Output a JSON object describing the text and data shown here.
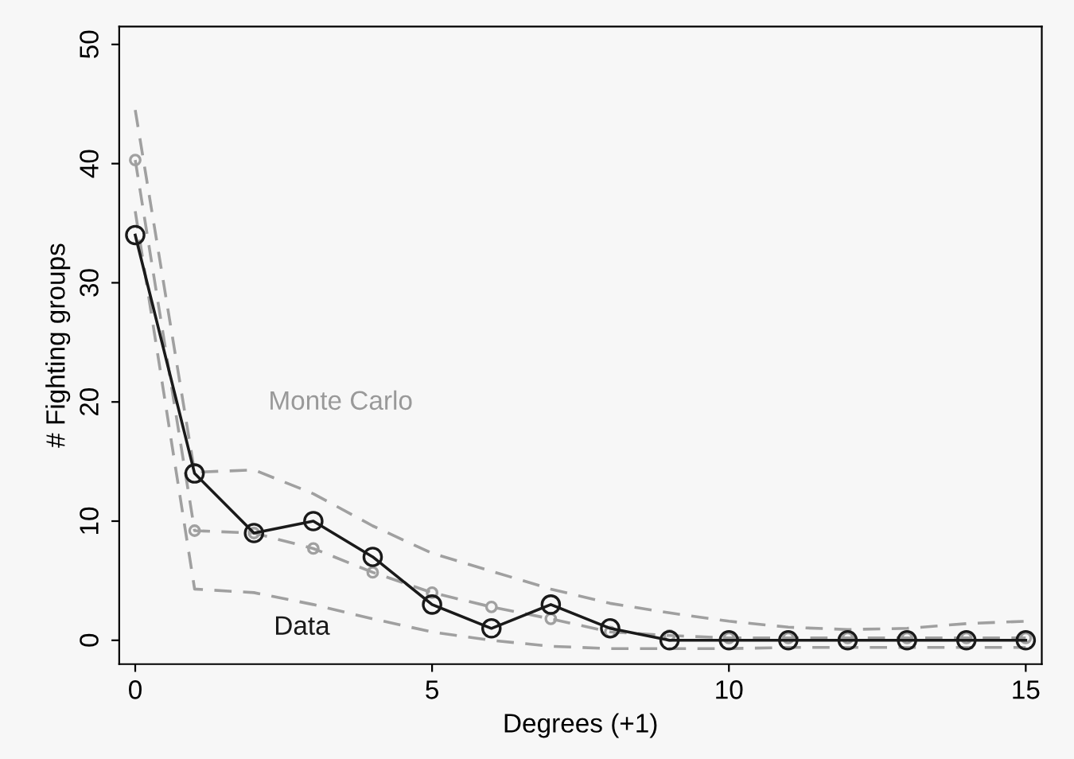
{
  "chart_data": {
    "type": "line",
    "xlabel": "Degrees (+1)",
    "ylabel": "# Fighting groups",
    "x": [
      0,
      1,
      2,
      3,
      4,
      5,
      6,
      7,
      8,
      9,
      10,
      11,
      12,
      13,
      14,
      15
    ],
    "series": [
      {
        "color": "#a0a0a0",
        "line_style": "dashed",
        "marker": "none",
        "values": [
          44.5,
          14.1,
          14.3,
          12.3,
          9.6,
          7.3,
          5.8,
          4.3,
          3.1,
          2.3,
          1.6,
          1.1,
          0.9,
          1.0,
          1.4,
          1.6
        ]
      },
      {
        "color": "#a0a0a0",
        "line_style": "dashed",
        "marker": "none",
        "values": [
          36,
          4.3,
          4.0,
          3.0,
          1.8,
          0.7,
          0.0,
          -0.5,
          -0.7,
          -0.7,
          -0.7,
          -0.6,
          -0.6,
          -0.6,
          -0.6,
          -0.6
        ]
      },
      {
        "color": "#a0a0a0",
        "line_style": "dashed",
        "marker": "circle",
        "values": [
          40.3,
          9.2,
          9.0,
          7.7,
          5.7,
          4.0,
          2.8,
          1.8,
          0.7,
          0.4,
          0.2,
          0.2,
          0.2,
          0.2,
          0.2,
          0.2
        ]
      },
      {
        "color": "#1a1a1a",
        "line_style": "solid",
        "marker": "circle",
        "values": [
          34,
          14,
          9,
          10,
          7,
          3,
          1,
          3,
          1,
          0,
          0,
          0,
          0,
          0,
          0,
          0
        ]
      }
    ],
    "annotations": [
      "Monte Carlo",
      "Data"
    ],
    "xlim": [
      -0.27,
      15.27
    ],
    "ylim": [
      -2,
      51.5
    ],
    "xticks": [
      0,
      5,
      10,
      15
    ],
    "yticks": [
      0,
      10,
      20,
      30,
      40,
      50
    ],
    "grid": false
  }
}
